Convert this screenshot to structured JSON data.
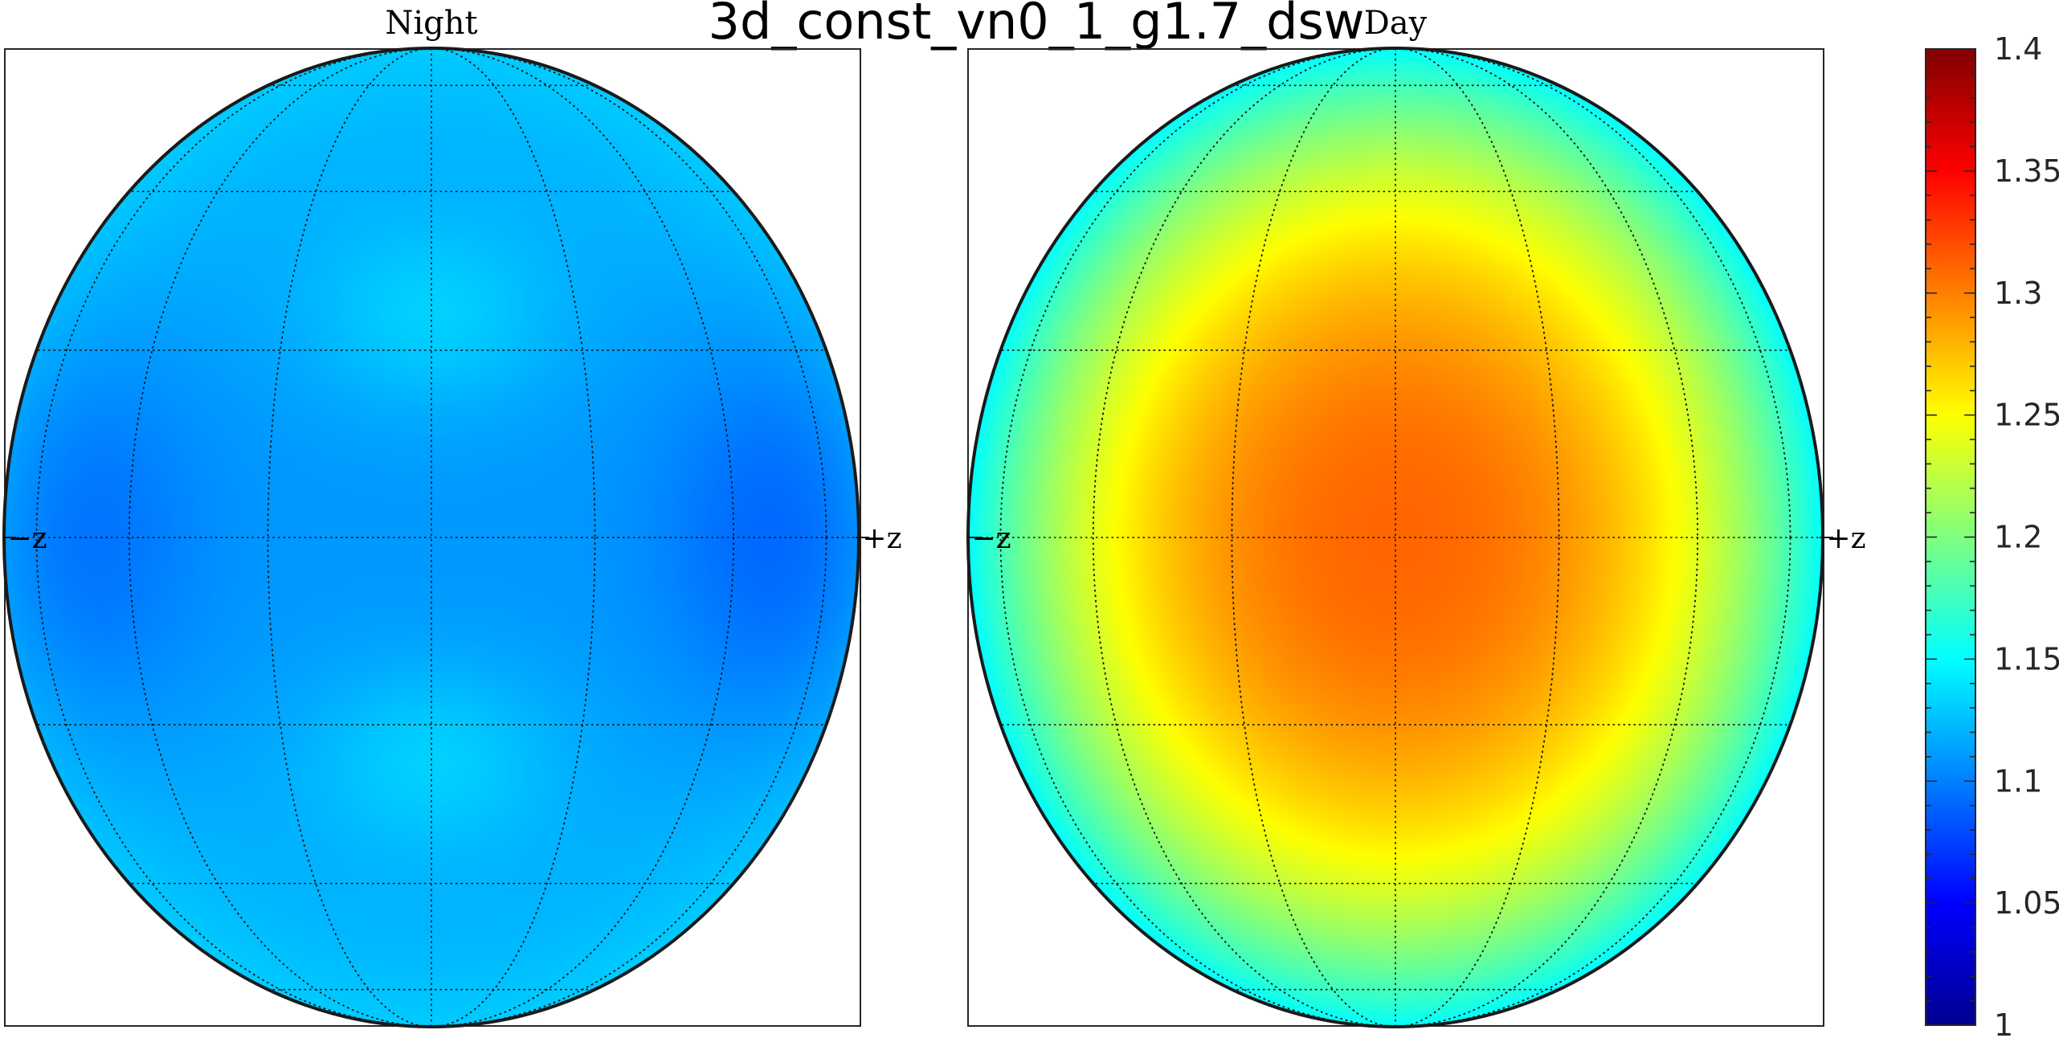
{
  "chart_data": {
    "type": "heatmap",
    "title": "3d_const_vn0_1_g1.7_dsw",
    "panels": [
      {
        "title": "Night",
        "projection": "orthographic disk",
        "left_axis_label": "−z",
        "right_axis_label": "+z",
        "center_value": 1.11,
        "edge_value": 1.13,
        "local_minima": [
          {
            "position": "left-equator",
            "value": 1.085
          },
          {
            "position": "right-equator",
            "value": 1.08
          }
        ],
        "local_maxima": [
          {
            "position": "upper-center",
            "value": 1.13
          },
          {
            "position": "lower-center",
            "value": 1.13
          }
        ]
      },
      {
        "title": "Day",
        "projection": "orthographic disk",
        "left_axis_label": "−z",
        "right_axis_label": "+z",
        "center_value": 1.31,
        "edge_value": 1.15,
        "ring_value": 1.24
      }
    ],
    "colorbar": {
      "colormap": "jet",
      "range": [
        1,
        1.4
      ],
      "ticks": [
        "1",
        "1.05",
        "1.1",
        "1.15",
        "1.2",
        "1.25",
        "1.3",
        "1.35",
        "1.4"
      ]
    },
    "grid": {
      "meridians": 8,
      "parallels": 8,
      "style": "dotted"
    }
  }
}
